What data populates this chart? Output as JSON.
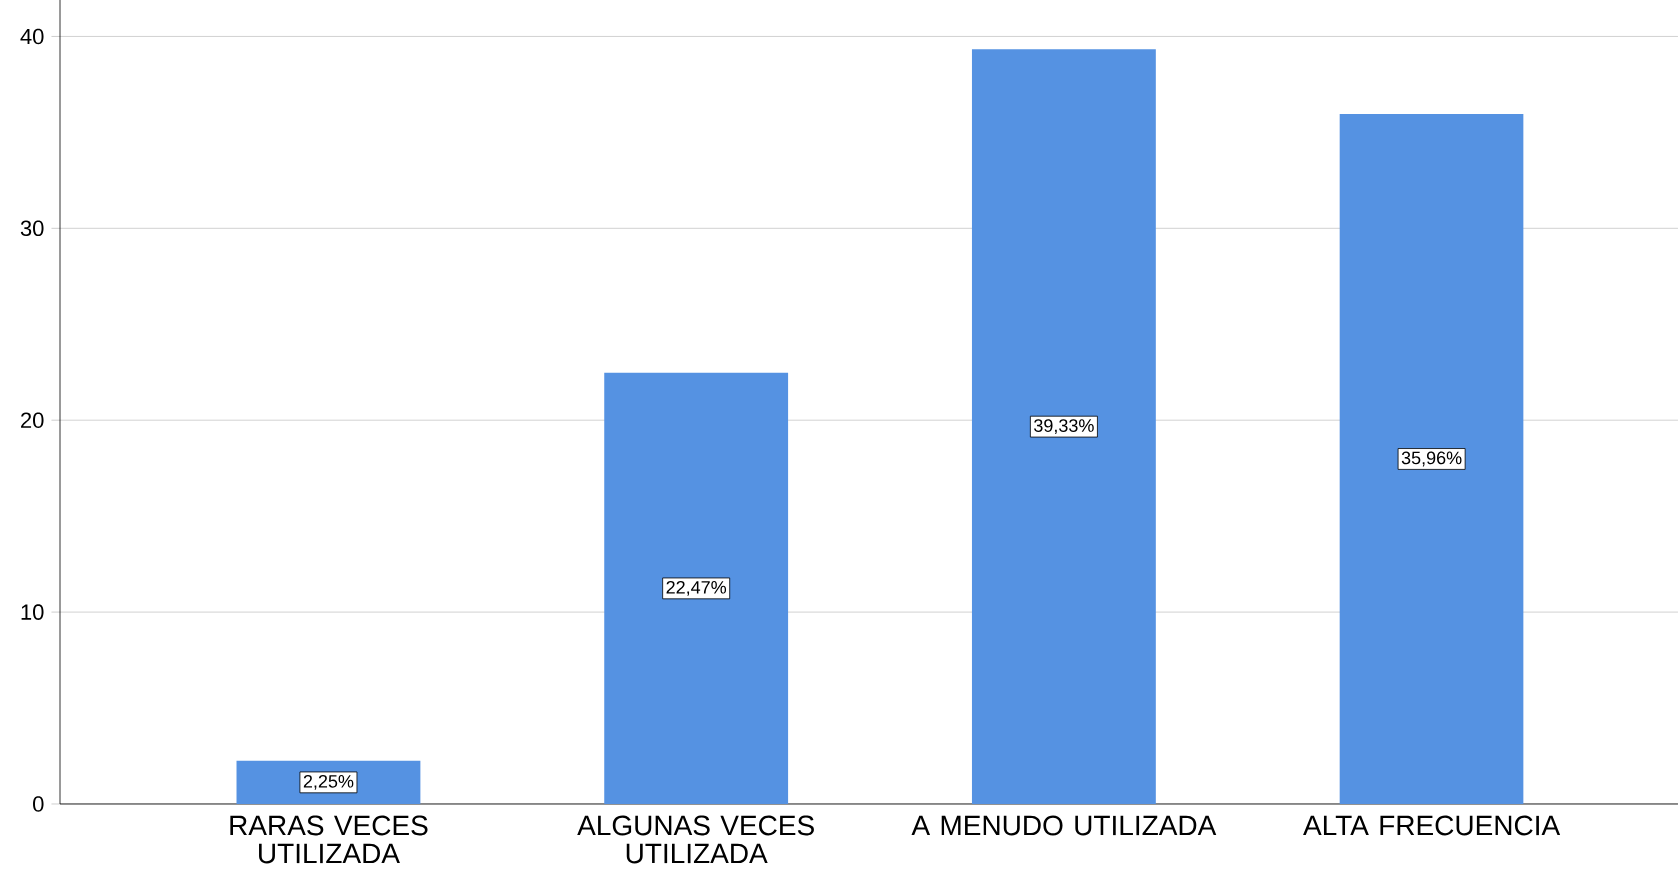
{
  "chart_data": {
    "type": "bar",
    "categories": [
      "RARAS VECES UTILIZADA",
      "ALGUNAS VECES UTILIZADA",
      "A MENUDO UTILIZADA",
      "ALTA FRECUENCIA"
    ],
    "values": [
      2.25,
      22.47,
      39.33,
      35.96
    ],
    "value_labels": [
      "2,25%",
      "22,47%",
      "39,33%",
      "35,96%"
    ],
    "color": "#5592e2",
    "ylim": [
      0,
      41.9
    ],
    "yticks": [
      0,
      10,
      20,
      30,
      40
    ],
    "grid": "y"
  }
}
